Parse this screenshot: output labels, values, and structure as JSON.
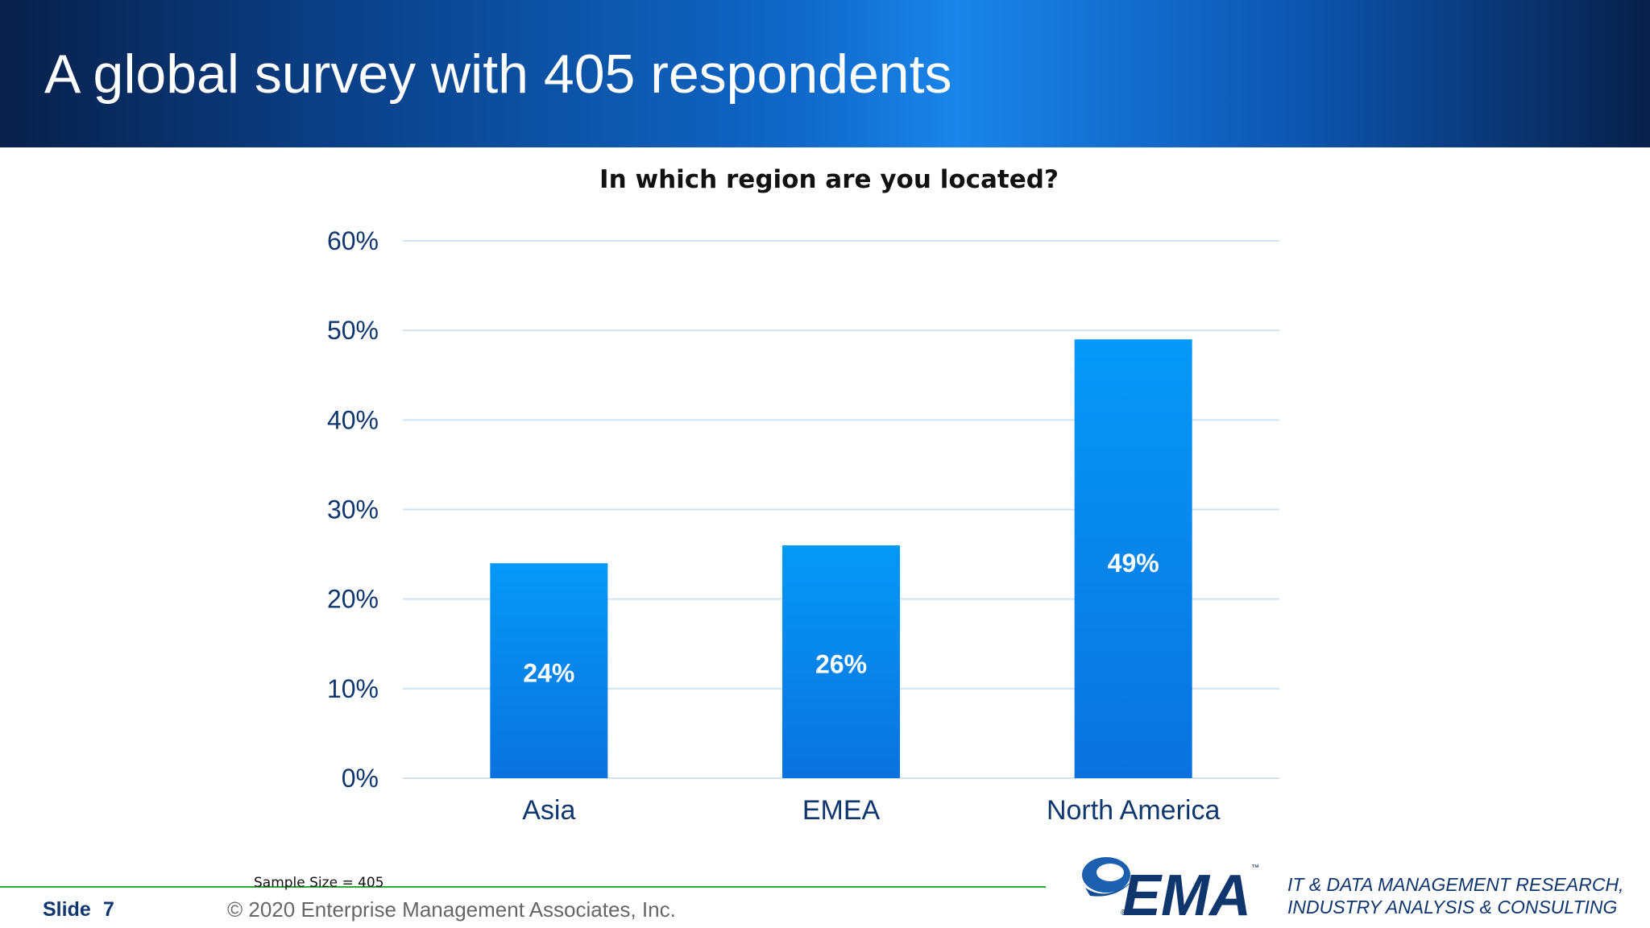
{
  "slide": {
    "title": "A global survey with 405 respondents",
    "sample_size": "Sample Size = 405",
    "slide_label": "Slide",
    "slide_number": "7",
    "copyright": "© 2020 Enterprise Management Associates, Inc.",
    "logo_text": "EMA",
    "logo_tm": "™",
    "logo_reg": "®",
    "tagline_line1": "IT & DATA MANAGEMENT RESEARCH,",
    "tagline_line2": "INDUSTRY ANALYSIS & CONSULTING"
  },
  "chart_data": {
    "type": "bar",
    "title": "In which region are you located?",
    "categories": [
      "Asia",
      "EMEA",
      "North America"
    ],
    "values": [
      24,
      26,
      49
    ],
    "value_labels": [
      "24%",
      "26%",
      "49%"
    ],
    "ylim": [
      0,
      60
    ],
    "yticks": [
      0,
      10,
      20,
      30,
      40,
      50,
      60
    ],
    "ytick_labels": [
      "0%",
      "10%",
      "20%",
      "30%",
      "40%",
      "50%",
      "60%"
    ],
    "xlabel": "",
    "ylabel": "",
    "grid": true,
    "legend": "none",
    "colors": {
      "bar_top": "#0599f8",
      "bar_bottom": "#0a72de",
      "axis_text": "#10366e",
      "gridline": "#cfe3f3",
      "value_label": "#ffffff"
    }
  }
}
